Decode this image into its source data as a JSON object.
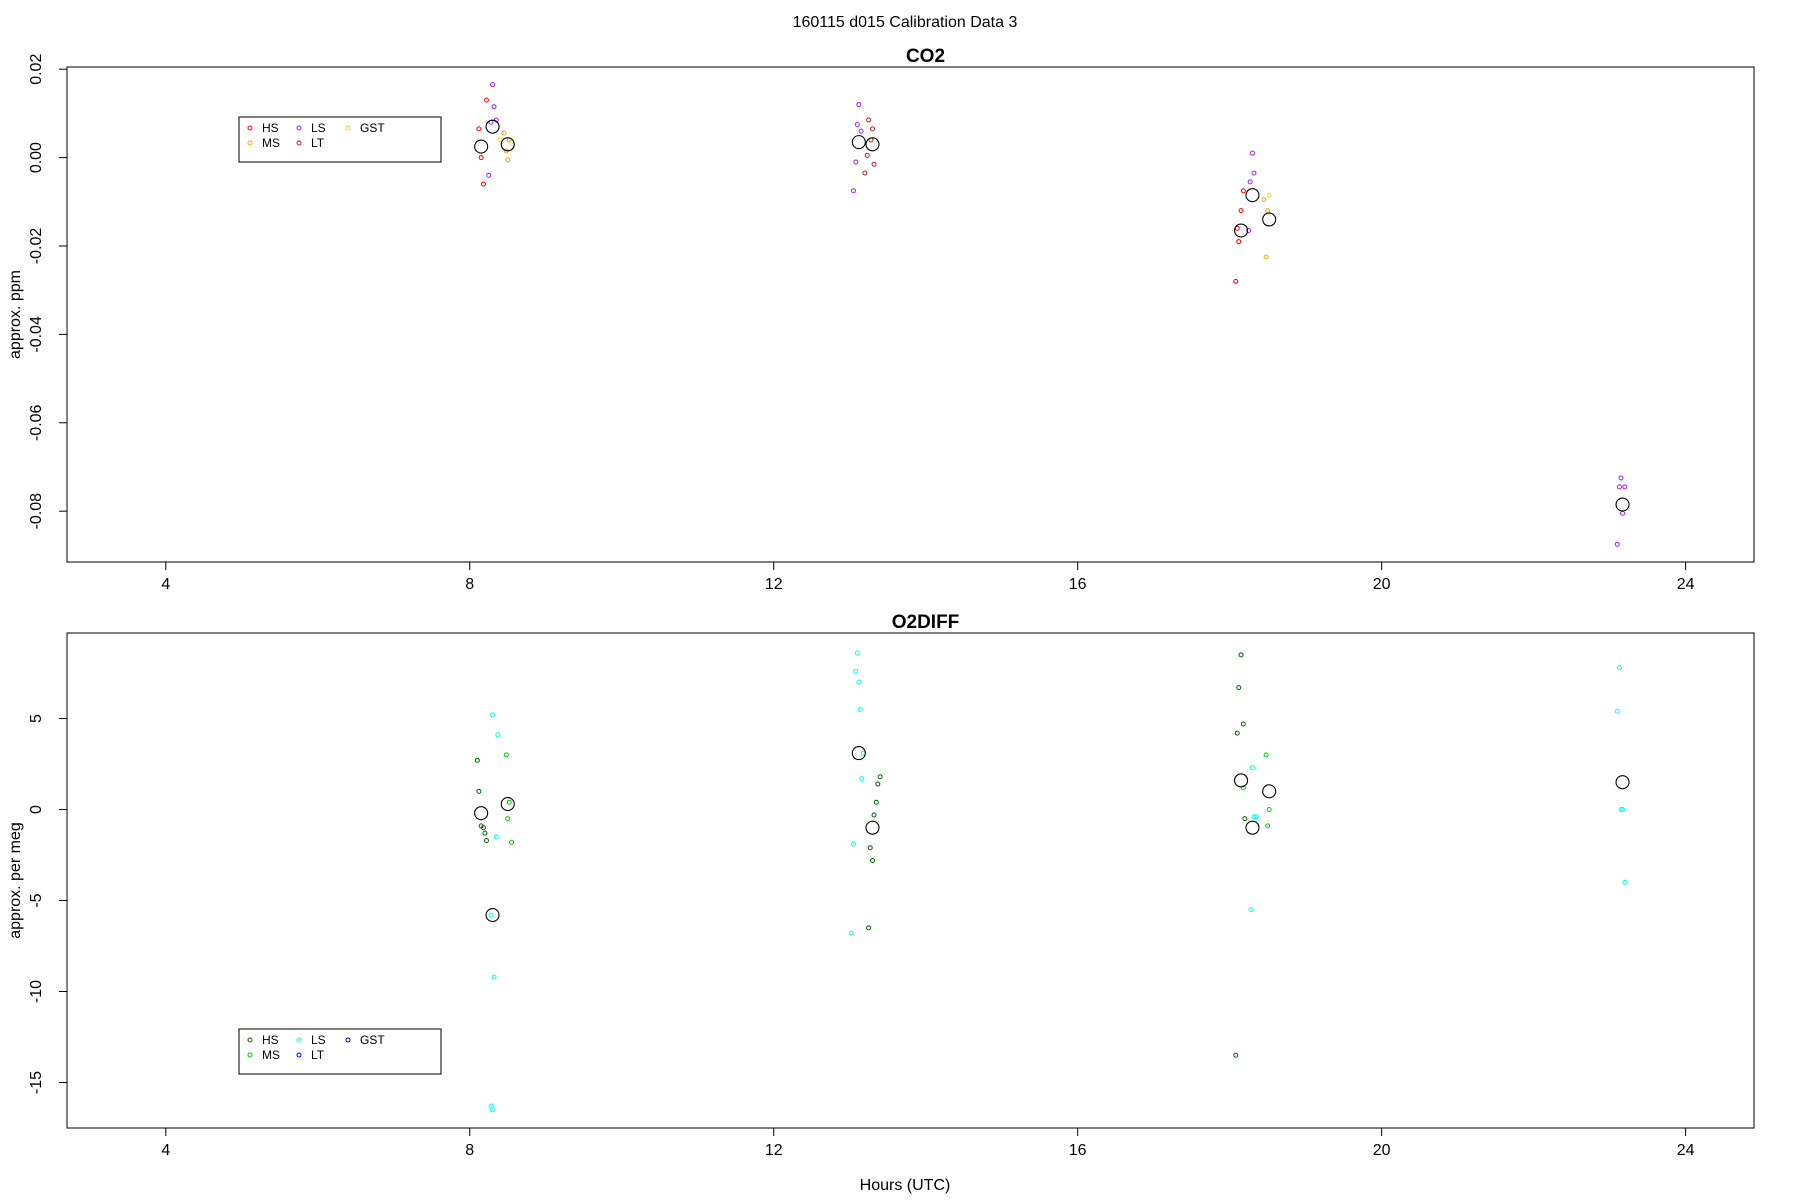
{
  "figure": {
    "title": "160115   d015   Calibration Data 3",
    "xlabel": "Hours (UTC)"
  },
  "chart_data": [
    {
      "type": "scatter",
      "title": "CO2",
      "ylabel": "approx. ppm",
      "xlim": [
        2.7,
        24.9
      ],
      "ylim": [
        -0.0915,
        0.0205
      ],
      "xticks": [
        4,
        8,
        12,
        16,
        20,
        24
      ],
      "yticks": [
        -0.08,
        -0.06,
        -0.04,
        -0.02,
        0.0,
        0.02
      ],
      "ytick_labels": [
        "-0.08",
        "-0.06",
        "-0.04",
        "-0.02",
        "0.00",
        "0.02"
      ],
      "grid": false,
      "legend_position": "top-left",
      "legend": [
        {
          "label": "HS",
          "color": "#ff0000"
        },
        {
          "label": "MS",
          "color": "#ffa500"
        },
        {
          "label": "LS",
          "color": "#a020f0"
        },
        {
          "label": "LT",
          "color": "#b22222"
        },
        {
          "label": "GST",
          "color": "#ffd700"
        }
      ],
      "series": [
        {
          "name": "HS",
          "color": "#ff0000",
          "x": [
            8.12,
            8.15,
            8.18,
            8.22,
            18.08,
            18.1,
            18.12,
            18.15,
            18.18
          ],
          "y": [
            0.0065,
            0.0,
            -0.006,
            0.013,
            -0.028,
            -0.016,
            -0.019,
            -0.012,
            -0.0075
          ]
        },
        {
          "name": "MS",
          "color": "#ffa500",
          "x": [
            8.45,
            8.48,
            8.5,
            8.52,
            18.45,
            18.48,
            18.5
          ],
          "y": [
            0.0055,
            0.0015,
            -0.0005,
            0.004,
            -0.0095,
            -0.0225,
            -0.012
          ]
        },
        {
          "name": "LS",
          "color": "#a020f0",
          "x": [
            8.25,
            8.28,
            8.3,
            8.32,
            8.35,
            13.05,
            13.08,
            13.1,
            13.12,
            13.15,
            18.25,
            18.27,
            18.3,
            18.32,
            23.1,
            23.13,
            23.15,
            23.17,
            23.2
          ],
          "y": [
            -0.004,
            0.008,
            0.0165,
            0.0115,
            0.0085,
            -0.0075,
            -0.001,
            0.0075,
            0.012,
            0.006,
            -0.0165,
            -0.0055,
            0.001,
            -0.0035,
            -0.0875,
            -0.0745,
            -0.0725,
            -0.0805,
            -0.0745
          ]
        },
        {
          "name": "LT",
          "color": "#b22222",
          "x": [
            13.2,
            13.23,
            13.25,
            13.28,
            13.3,
            13.32
          ],
          "y": [
            -0.0035,
            0.0005,
            0.0085,
            0.004,
            0.0065,
            -0.0015
          ]
        },
        {
          "name": "GST",
          "color": "#ffd700",
          "x": [
            8.4,
            8.55,
            18.52
          ],
          "y": [
            0.004,
            0.0035,
            -0.0085
          ]
        },
        {
          "name": "",
          "color": "#000000",
          "marker": "large-circle",
          "x": [
            8.15,
            8.3,
            8.5,
            13.12,
            13.3,
            18.15,
            18.3,
            18.52,
            23.17
          ],
          "y": [
            0.0025,
            0.007,
            0.003,
            0.0035,
            0.003,
            -0.0165,
            -0.0085,
            -0.014,
            -0.0785
          ]
        }
      ]
    },
    {
      "type": "scatter",
      "title": "O2DIFF",
      "ylabel": "approx. per meg",
      "xlim": [
        2.7,
        24.9
      ],
      "ylim": [
        -17.5,
        9.7
      ],
      "xticks": [
        4,
        8,
        12,
        16,
        20,
        24
      ],
      "yticks": [
        -15,
        -10,
        -5,
        0,
        5
      ],
      "ytick_labels": [
        "-15",
        "-10",
        "-5",
        "0",
        "5"
      ],
      "grid": false,
      "legend_position": "bottom-left",
      "legend": [
        {
          "label": "HS",
          "color": "#006400"
        },
        {
          "label": "MS",
          "color": "#00cd00"
        },
        {
          "label": "LS",
          "color": "#00ffff"
        },
        {
          "label": "LT",
          "color": "#0000ff"
        },
        {
          "label": "GST",
          "color": "#000080"
        }
      ],
      "series": [
        {
          "name": "HS",
          "color": "#006400",
          "x": [
            8.1,
            8.12,
            8.15,
            8.18,
            8.2,
            8.22,
            13.25,
            13.27,
            13.3,
            13.32,
            13.35,
            13.37,
            13.4,
            18.08,
            18.1,
            18.12,
            18.15,
            18.18,
            18.2
          ],
          "y": [
            2.7,
            1.0,
            -0.9,
            -1.0,
            -1.3,
            -1.7,
            -6.5,
            -2.1,
            -2.8,
            -0.3,
            0.4,
            1.4,
            1.8,
            -13.5,
            4.2,
            6.7,
            8.5,
            4.7,
            -0.5
          ]
        },
        {
          "name": "MS",
          "color": "#00cd00",
          "x": [
            8.48,
            8.5,
            8.52,
            8.55,
            18.18,
            18.48,
            18.5,
            18.52
          ],
          "y": [
            3.0,
            -0.5,
            0.4,
            -1.8,
            1.2,
            3.0,
            -0.9,
            0.0
          ]
        },
        {
          "name": "LS",
          "color": "#00ffff",
          "x": [
            8.28,
            8.3,
            8.32,
            8.35,
            8.37,
            8.3,
            8.28,
            13.02,
            13.05,
            13.08,
            13.1,
            13.12,
            13.14,
            13.16,
            13.18,
            18.28,
            18.3,
            18.32,
            18.35,
            23.1,
            23.13,
            23.15,
            23.17,
            23.2
          ],
          "y": [
            -16.3,
            -16.5,
            -9.2,
            -1.5,
            4.1,
            5.2,
            -5.8,
            -6.8,
            -1.9,
            7.6,
            8.6,
            7.0,
            5.5,
            1.7,
            3.1,
            -5.5,
            2.3,
            -0.4,
            -0.4,
            5.4,
            7.8,
            0.0,
            0.0,
            -4.0
          ]
        },
        {
          "name": "",
          "color": "#000000",
          "marker": "large-circle",
          "x": [
            8.15,
            8.3,
            8.5,
            13.12,
            13.3,
            18.15,
            18.3,
            18.52,
            23.17
          ],
          "y": [
            -0.2,
            -5.8,
            0.3,
            3.1,
            -1.0,
            1.6,
            -1.0,
            1.0,
            1.5
          ]
        }
      ]
    }
  ]
}
